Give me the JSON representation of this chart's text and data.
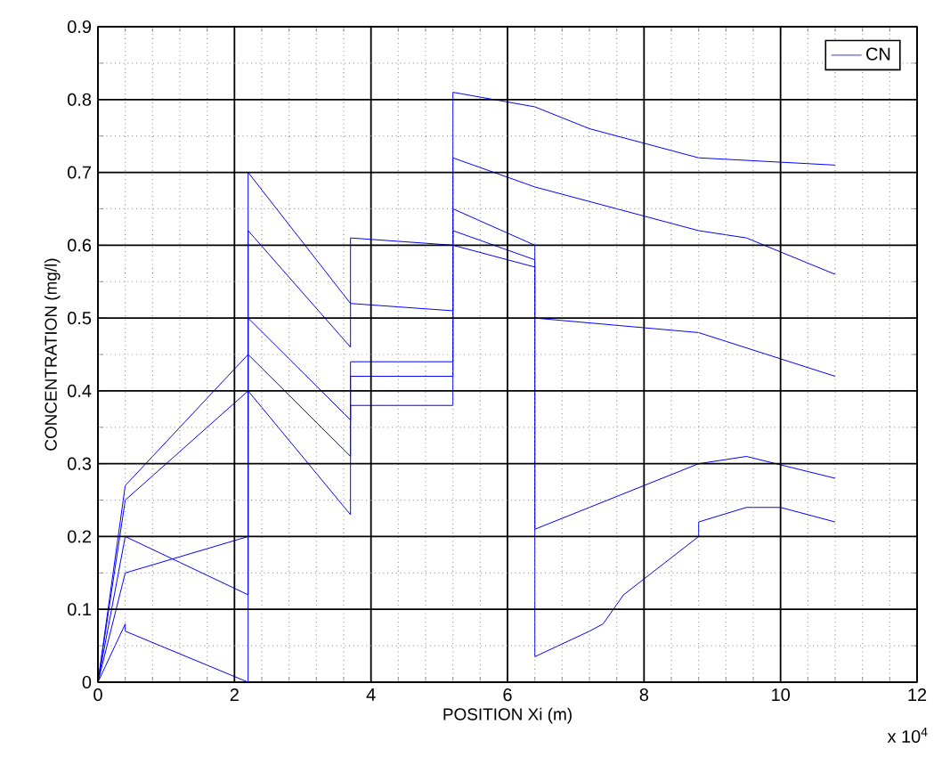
{
  "chart_data": {
    "type": "line",
    "xlabel": "POSITION Xi (m)",
    "ylabel": "CONCENTRATION (mg/l)",
    "annotations": [
      "x 10$^{4}$"
    ],
    "xlim": [
      0,
      12
    ],
    "xticks": [
      0,
      2,
      4,
      6,
      8,
      10,
      12
    ],
    "ylim": [
      0,
      0.9
    ],
    "yticks": [
      0,
      0.1,
      0.2,
      0.3,
      0.4,
      0.5,
      0.6,
      0.7,
      0.8,
      0.9
    ],
    "grid": true,
    "legend": "top right",
    "series": [
      {
        "name": "CN",
        "color": "#0000ff",
        "x": [
          0,
          0.4,
          2.2,
          2.2,
          3.7,
          3.7,
          5.2,
          5.2,
          6.4,
          7.2,
          8.8,
          10.8
        ],
        "values": [
          0,
          0.27,
          0.45,
          0.7,
          0.52,
          0.61,
          0.6,
          0.81,
          0.79,
          0.76,
          0.72,
          0.71
        ]
      },
      {
        "color": "#0000ff",
        "x": [
          0,
          0.4,
          2.2,
          2.2,
          3.7,
          3.7,
          5.2,
          5.2,
          6.4,
          8.8,
          9.5,
          10.8
        ],
        "values": [
          0,
          0.25,
          0.4,
          0.62,
          0.46,
          0.52,
          0.51,
          0.72,
          0.68,
          0.62,
          0.61,
          0.56
        ]
      },
      {
        "color": "#0000ff",
        "x": [
          0,
          0.4,
          2.2,
          2.2,
          3.7,
          3.7,
          5.2,
          5.2,
          6.4,
          6.4,
          8.8,
          10.8
        ],
        "values": [
          0,
          0.15,
          0.2,
          0.5,
          0.36,
          0.44,
          0.44,
          0.65,
          0.6,
          0.5,
          0.48,
          0.42
        ]
      },
      {
        "color": "#0000ff",
        "x": [
          0,
          0.4,
          0.4,
          2.2,
          2.2,
          3.7,
          3.7,
          5.2,
          5.2,
          6.4,
          6.4,
          7.2,
          7.4,
          7.7,
          8.8,
          8.8,
          9.5,
          10,
          10.8
        ],
        "values": [
          0,
          0.08,
          0.07,
          0,
          0.45,
          0.31,
          0.42,
          0.42,
          0.62,
          0.58,
          0.035,
          0.07,
          0.08,
          0.12,
          0.2,
          0.22,
          0.24,
          0.24,
          0.22
        ]
      },
      {
        "color": "#0000ff",
        "x": [
          0,
          0.4,
          2.2,
          2.2,
          3.7,
          3.7,
          5.2,
          5.2,
          6.4,
          6.4,
          8.8,
          9.5,
          10.8
        ],
        "values": [
          0,
          0.2,
          0.12,
          0.4,
          0.23,
          0.38,
          0.38,
          0.6,
          0.57,
          0.21,
          0.3,
          0.31,
          0.28
        ]
      }
    ]
  }
}
